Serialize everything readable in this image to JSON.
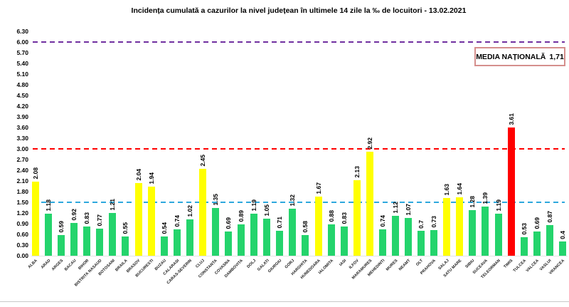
{
  "title": "Incidența cumulată a cazurilor la nivel județean în ultimele 14 zile la ‰ de locuitori - 13.02.2021",
  "media_box": {
    "label": "MEDIA NAȚIONALĂ",
    "value": "1,71"
  },
  "chart_data": {
    "type": "bar",
    "title": "Incidența cumulată a cazurilor la nivel județean în ultimele 14 zile la ‰ de locuitori - 13.02.2021",
    "xlabel": "",
    "ylabel": "",
    "ylim": [
      0,
      6.3
    ],
    "ytick_step": 0.3,
    "grid": false,
    "legend": "none",
    "categories": [
      "ALBA",
      "ARAD",
      "ARGES",
      "BACAU",
      "BIHOR",
      "BISTRITA NASAUD",
      "BOTOSANI",
      "BRAILA",
      "BRASOV",
      "BUCURESTI",
      "BUZAU",
      "CALARASI",
      "CARAS-SEVERIN",
      "CLUJ",
      "CONSTANTA",
      "COVASNA",
      "DAMBOVITA",
      "DOLJ",
      "GALATI",
      "GIURGIU",
      "GORJ",
      "HARGHITA",
      "HUNEDOARA",
      "IALOMITA",
      "IASI",
      "ILFOV",
      "MARAMURES",
      "MEHEDINTI",
      "MURES",
      "NEAMT",
      "OLT",
      "PRAHOVA",
      "SALAJ",
      "SATU MARE",
      "SIBIU",
      "SUCEAVA",
      "TELEORMAN",
      "TIMIS",
      "TULCEA",
      "VALCEA",
      "VASLUI",
      "VRANCEA"
    ],
    "values": [
      2.08,
      1.18,
      0.59,
      0.92,
      0.83,
      0.77,
      1.21,
      0.55,
      2.04,
      1.94,
      0.54,
      0.74,
      1.02,
      2.45,
      1.35,
      0.69,
      0.89,
      1.19,
      1.05,
      0.71,
      1.32,
      0.58,
      1.67,
      0.88,
      0.83,
      2.13,
      2.92,
      0.74,
      1.12,
      1.07,
      0.7,
      0.73,
      1.63,
      1.64,
      1.28,
      1.39,
      1.19,
      3.61,
      0.53,
      0.69,
      0.87,
      0.4
    ],
    "value_labels": [
      "2.08",
      "1.18",
      "0.59",
      "0.92",
      "0.83",
      "0.77",
      "1.21",
      "0.55",
      "2.04",
      "1.94",
      "0.54",
      "0.74",
      "1.02",
      "2.45",
      "1.35",
      "0.69",
      "0.89",
      "1.19",
      "1.05",
      "0.71",
      "1.32",
      "0.58",
      "1.67",
      "0.88",
      "0.83",
      "2.13",
      "2.92",
      "0.74",
      "1.12",
      "1.07",
      "0.7",
      "0.73",
      "1.63",
      "1.64",
      "1.28",
      "1.39",
      "1.19",
      "3.61",
      "0.53",
      "0.69",
      "0.87",
      "0.4"
    ],
    "bar_colors": {
      "low": "#24d46c",
      "medium": "#ffff00",
      "high": "#ff0000"
    },
    "color_thresholds": {
      "medium_min": 1.5,
      "high_min": 3.0
    },
    "reference_lines": [
      {
        "name": "limit-6",
        "value": 6.0,
        "color": "#7030a0"
      },
      {
        "name": "limit-3",
        "value": 3.0,
        "color": "#ff0000"
      },
      {
        "name": "limit-1-5",
        "value": 1.5,
        "color": "#2ea8dd"
      }
    ]
  }
}
